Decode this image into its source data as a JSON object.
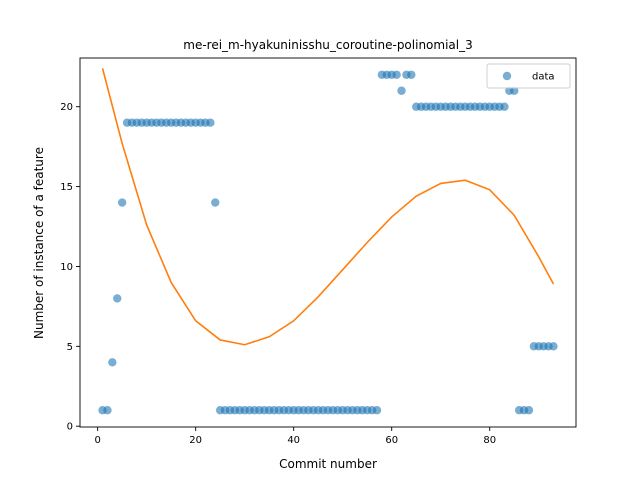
{
  "chart_data": {
    "type": "scatter",
    "title": "me-rei_m-hyakuninisshu_coroutine-polinomial_3",
    "xlabel": "Commit number",
    "ylabel": "Number of instance of a feature",
    "xlim": [
      -3.6,
      97.6
    ],
    "ylim": [
      -0.05,
      23.05
    ],
    "xticks": [
      0,
      20,
      40,
      60,
      80
    ],
    "yticks": [
      0,
      5,
      10,
      15,
      20
    ],
    "legend": {
      "position": "top-right",
      "entries": [
        "data"
      ]
    },
    "colors": {
      "points": "#1f77b4",
      "fit": "#ff7f0e"
    },
    "series": [
      {
        "name": "data",
        "kind": "scatter",
        "x": [
          1,
          2,
          3,
          4,
          5,
          6,
          7,
          8,
          9,
          10,
          11,
          12,
          13,
          14,
          15,
          16,
          17,
          18,
          19,
          20,
          21,
          22,
          23,
          24,
          25,
          26,
          27,
          28,
          29,
          30,
          31,
          32,
          33,
          34,
          35,
          36,
          37,
          38,
          39,
          40,
          41,
          42,
          43,
          44,
          45,
          46,
          47,
          48,
          49,
          50,
          51,
          52,
          53,
          54,
          55,
          56,
          57,
          58,
          59,
          60,
          61,
          62,
          63,
          64,
          65,
          66,
          67,
          68,
          69,
          70,
          71,
          72,
          73,
          74,
          75,
          76,
          77,
          78,
          79,
          80,
          81,
          82,
          83,
          84,
          85,
          86,
          87,
          88,
          89,
          90,
          91,
          92,
          93
        ],
        "y": [
          1,
          1,
          4,
          8,
          14,
          19,
          19,
          19,
          19,
          19,
          19,
          19,
          19,
          19,
          19,
          19,
          19,
          19,
          19,
          19,
          19,
          19,
          19,
          14,
          1,
          1,
          1,
          1,
          1,
          1,
          1,
          1,
          1,
          1,
          1,
          1,
          1,
          1,
          1,
          1,
          1,
          1,
          1,
          1,
          1,
          1,
          1,
          1,
          1,
          1,
          1,
          1,
          1,
          1,
          1,
          1,
          1,
          22,
          22,
          22,
          22,
          21,
          22,
          22,
          20,
          20,
          20,
          20,
          20,
          20,
          20,
          20,
          20,
          20,
          20,
          20,
          20,
          20,
          20,
          20,
          20,
          20,
          20,
          21,
          21,
          1,
          1,
          1,
          5,
          5,
          5,
          5,
          5
        ]
      },
      {
        "kind": "line",
        "x": [
          1,
          5,
          10,
          15,
          20,
          25,
          30,
          35,
          40,
          45,
          50,
          55,
          60,
          65,
          70,
          75,
          80,
          85,
          90,
          93
        ],
        "y": [
          22.4,
          17.7,
          12.6,
          9.0,
          6.6,
          5.4,
          5.1,
          5.6,
          6.6,
          8.1,
          9.8,
          11.5,
          13.1,
          14.4,
          15.2,
          15.4,
          14.8,
          13.2,
          10.6,
          8.9
        ]
      }
    ]
  }
}
